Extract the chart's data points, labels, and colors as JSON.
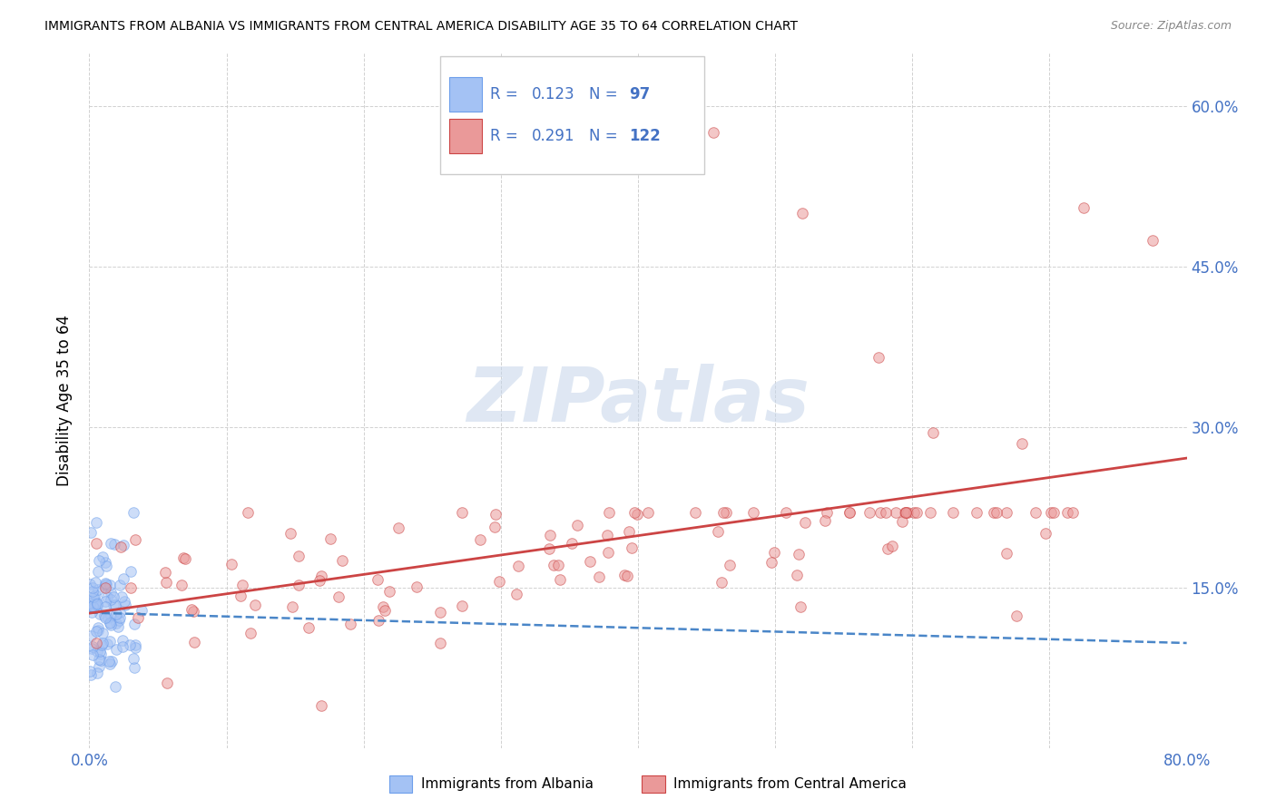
{
  "title": "IMMIGRANTS FROM ALBANIA VS IMMIGRANTS FROM CENTRAL AMERICA DISABILITY AGE 35 TO 64 CORRELATION CHART",
  "source": "Source: ZipAtlas.com",
  "ylabel": "Disability Age 35 to 64",
  "xlim": [
    0.0,
    0.8
  ],
  "ylim": [
    0.0,
    0.65
  ],
  "x_ticks": [
    0.0,
    0.1,
    0.2,
    0.3,
    0.4,
    0.5,
    0.6,
    0.7,
    0.8
  ],
  "x_tick_labels": [
    "0.0%",
    "",
    "",
    "",
    "",
    "",
    "",
    "",
    "80.0%"
  ],
  "y_ticks": [
    0.0,
    0.15,
    0.3,
    0.45,
    0.6
  ],
  "y_tick_labels": [
    "",
    "15.0%",
    "30.0%",
    "45.0%",
    "60.0%"
  ],
  "albania_color": "#a4c2f4",
  "albania_edge": "#6d9eeb",
  "albania_trendline_color": "#4a86c8",
  "central_america_color": "#ea9999",
  "central_america_edge": "#cc4444",
  "central_america_trendline_color": "#cc4444",
  "albania_R": 0.123,
  "albania_N": 97,
  "central_america_R": 0.291,
  "central_america_N": 122,
  "legend_text_color": "#4472c4",
  "watermark": "ZIPatlas",
  "watermark_color": "#c5d5ea",
  "grid_color": "#cccccc",
  "background_color": "#ffffff",
  "tick_color": "#4472c4",
  "scatter_alpha": 0.55,
  "scatter_size": 70
}
